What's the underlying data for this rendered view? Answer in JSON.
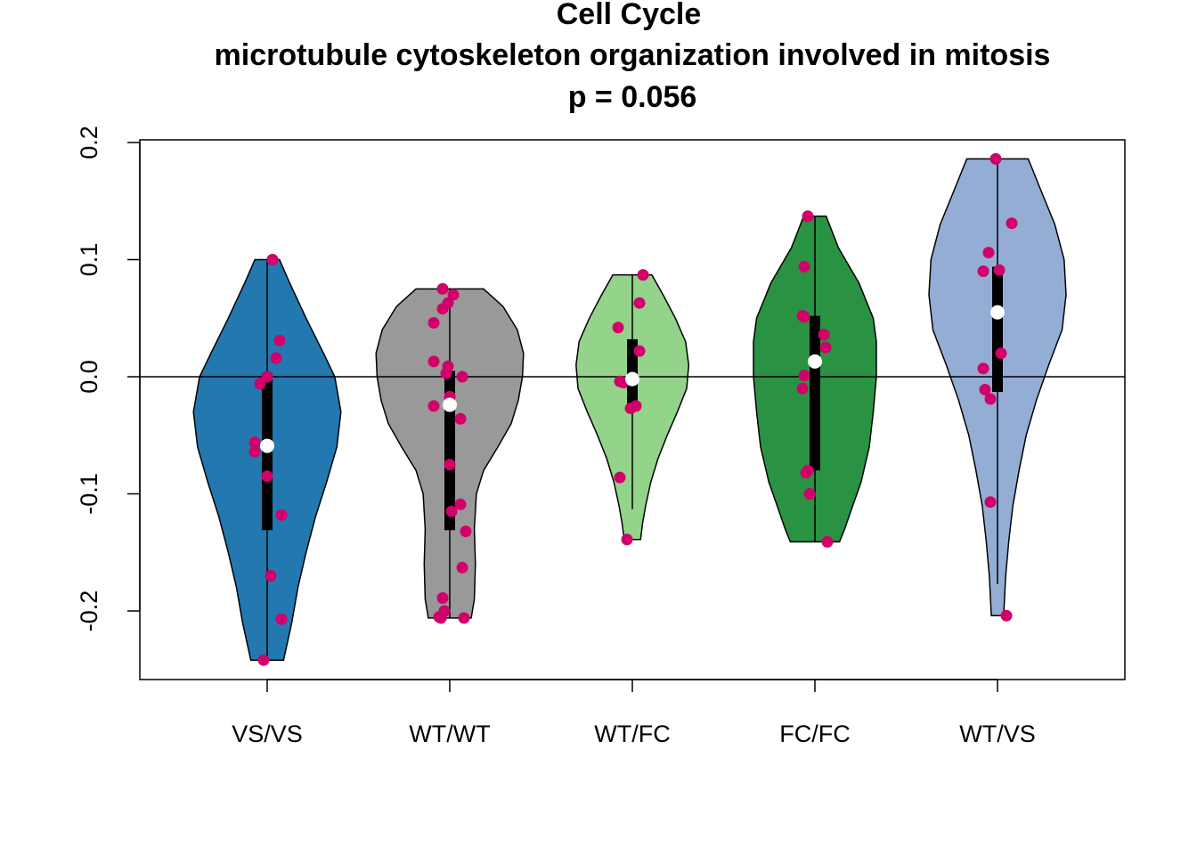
{
  "chart_data": {
    "type": "violin",
    "title": "Cell Cycle",
    "subtitle": "microtubule cytoskeleton organization involved in mitosis",
    "annotation": "p = 0.056",
    "xlabel": "",
    "ylabel": "",
    "ylim": [
      -0.258,
      0.205
    ],
    "yticks": [
      -0.2,
      -0.1,
      0.0,
      0.1,
      0.2
    ],
    "ytick_labels": [
      "-0.2",
      "-0.1",
      "0.0",
      "0.1",
      "0.2"
    ],
    "reference_line_y": 0.0,
    "point_color": "#D1006B",
    "median_color": "#FFFFFF",
    "box_color": "#000000",
    "grid": false,
    "groups": [
      {
        "label": "VS/VS",
        "color": "#2378B0",
        "min": -0.242,
        "q1": -0.131,
        "median": -0.059,
        "q3": 0.003,
        "max": 0.1,
        "whisker_low": -0.242,
        "whisker_high": 0.1,
        "density": [
          [
            0.1,
            0.12
          ],
          [
            0.08,
            0.22
          ],
          [
            0.05,
            0.38
          ],
          [
            0.02,
            0.55
          ],
          [
            0.0,
            0.66
          ],
          [
            -0.03,
            0.72
          ],
          [
            -0.06,
            0.68
          ],
          [
            -0.09,
            0.58
          ],
          [
            -0.12,
            0.47
          ],
          [
            -0.15,
            0.38
          ],
          [
            -0.18,
            0.3
          ],
          [
            -0.21,
            0.24
          ],
          [
            -0.242,
            0.16
          ]
        ],
        "points": [
          0.1,
          0.031,
          0.016,
          0.0,
          -0.006,
          -0.056,
          -0.064,
          -0.085,
          -0.118,
          -0.17,
          -0.207,
          -0.242
        ],
        "jitter": [
          0.03,
          0.07,
          0.05,
          0.0,
          -0.04,
          -0.07,
          -0.07,
          0.0,
          0.08,
          0.02,
          0.08,
          -0.02
        ]
      },
      {
        "label": "WT/WT",
        "color": "#999999",
        "min": -0.206,
        "q1": -0.131,
        "median": -0.024,
        "q3": 0.005,
        "max": 0.075,
        "whisker_low": -0.206,
        "whisker_high": 0.075,
        "density": [
          [
            0.075,
            0.33
          ],
          [
            0.06,
            0.52
          ],
          [
            0.04,
            0.66
          ],
          [
            0.02,
            0.72
          ],
          [
            0.0,
            0.71
          ],
          [
            -0.02,
            0.67
          ],
          [
            -0.04,
            0.6
          ],
          [
            -0.06,
            0.47
          ],
          [
            -0.08,
            0.33
          ],
          [
            -0.1,
            0.26
          ],
          [
            -0.13,
            0.24
          ],
          [
            -0.16,
            0.25
          ],
          [
            -0.19,
            0.24
          ],
          [
            -0.206,
            0.21
          ]
        ],
        "points": [
          0.075,
          0.07,
          0.063,
          0.058,
          0.046,
          0.013,
          0.009,
          0.003,
          0.0,
          -0.017,
          -0.025,
          -0.036,
          -0.075,
          -0.109,
          -0.115,
          -0.132,
          -0.163,
          -0.189,
          -0.2,
          -0.205,
          -0.206,
          -0.206
        ],
        "jitter": [
          -0.04,
          0.02,
          -0.01,
          -0.04,
          -0.09,
          -0.09,
          -0.01,
          -0.02,
          0.07,
          0.0,
          -0.09,
          0.06,
          0.0,
          0.06,
          0.01,
          0.09,
          0.07,
          -0.04,
          -0.03,
          -0.06,
          0.08,
          -0.05
        ]
      },
      {
        "label": "WT/FC",
        "color": "#93D38A",
        "min": -0.139,
        "q1": -0.027,
        "median": -0.002,
        "q3": 0.032,
        "max": 0.087,
        "whisker_low": -0.113,
        "whisker_high": 0.087,
        "density": [
          [
            0.087,
            0.19
          ],
          [
            0.07,
            0.3
          ],
          [
            0.05,
            0.42
          ],
          [
            0.03,
            0.52
          ],
          [
            0.01,
            0.55
          ],
          [
            -0.01,
            0.53
          ],
          [
            -0.03,
            0.44
          ],
          [
            -0.05,
            0.34
          ],
          [
            -0.07,
            0.25
          ],
          [
            -0.09,
            0.18
          ],
          [
            -0.11,
            0.13
          ],
          [
            -0.125,
            0.1
          ],
          [
            -0.139,
            0.08
          ]
        ],
        "points": [
          0.087,
          0.063,
          0.042,
          0.022,
          -0.002,
          -0.004,
          -0.005,
          -0.025,
          -0.027,
          -0.086,
          -0.139
        ],
        "jitter": [
          0.06,
          0.04,
          -0.08,
          0.04,
          0.0,
          -0.07,
          -0.05,
          0.02,
          -0.01,
          -0.07,
          -0.03
        ]
      },
      {
        "label": "FC/FC",
        "color": "#2A9343",
        "min": -0.141,
        "q1": -0.08,
        "median": 0.013,
        "q3": 0.052,
        "max": 0.137,
        "whisker_low": -0.141,
        "whisker_high": 0.137,
        "density": [
          [
            0.137,
            0.11
          ],
          [
            0.11,
            0.23
          ],
          [
            0.08,
            0.43
          ],
          [
            0.05,
            0.57
          ],
          [
            0.03,
            0.6
          ],
          [
            0.0,
            0.6
          ],
          [
            -0.03,
            0.57
          ],
          [
            -0.06,
            0.53
          ],
          [
            -0.09,
            0.45
          ],
          [
            -0.11,
            0.37
          ],
          [
            -0.13,
            0.29
          ],
          [
            -0.141,
            0.24
          ]
        ],
        "points": [
          0.137,
          0.094,
          0.052,
          0.051,
          0.036,
          0.025,
          0.001,
          -0.01,
          -0.08,
          -0.082,
          -0.1,
          -0.141
        ],
        "jitter": [
          -0.04,
          -0.06,
          -0.07,
          -0.06,
          0.05,
          0.06,
          -0.06,
          -0.07,
          -0.04,
          -0.05,
          -0.03,
          0.07
        ]
      },
      {
        "label": "WT/VS",
        "color": "#94ADD4",
        "min": -0.204,
        "q1": -0.013,
        "median": 0.055,
        "q3": 0.094,
        "max": 0.186,
        "whisker_low": -0.177,
        "whisker_high": 0.186,
        "density": [
          [
            0.186,
            0.3
          ],
          [
            0.16,
            0.42
          ],
          [
            0.13,
            0.56
          ],
          [
            0.1,
            0.65
          ],
          [
            0.07,
            0.67
          ],
          [
            0.04,
            0.63
          ],
          [
            0.01,
            0.5
          ],
          [
            -0.02,
            0.38
          ],
          [
            -0.05,
            0.28
          ],
          [
            -0.08,
            0.21
          ],
          [
            -0.11,
            0.15
          ],
          [
            -0.14,
            0.11
          ],
          [
            -0.17,
            0.08
          ],
          [
            -0.204,
            0.06
          ]
        ],
        "points": [
          0.186,
          0.131,
          0.106,
          0.091,
          0.09,
          0.02,
          0.007,
          -0.011,
          -0.019,
          -0.107,
          -0.204
        ],
        "jitter": [
          -0.01,
          0.08,
          -0.05,
          0.01,
          -0.08,
          0.02,
          -0.08,
          -0.07,
          -0.04,
          -0.04,
          0.05
        ]
      }
    ]
  }
}
